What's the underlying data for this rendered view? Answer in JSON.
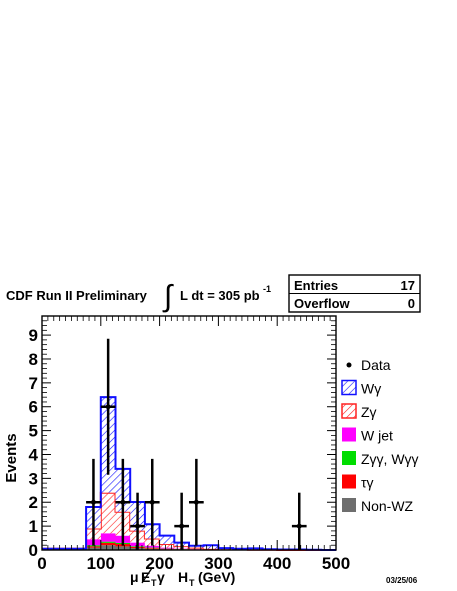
{
  "chart_data": {
    "type": "bar",
    "title_parts": {
      "pre": "CDF Run II Preliminary",
      "integral": "∫",
      "lumi": "L dt = 305 pb",
      "exp": "-1"
    },
    "stats_box": {
      "entries_label": "Entries",
      "entries_value": "17",
      "overflow_label": "Overflow",
      "overflow_value": "0"
    },
    "xlabel": "μE̸Tγ  HT (GeV)",
    "xlabel_parts": {
      "prefix": "μ",
      "met": "E",
      "met_sub": "T",
      "gamma": "γ",
      "ht": "H",
      "ht_sub": "T",
      "unit": "(GeV)"
    },
    "ylabel": "Events",
    "xlim": [
      0,
      500
    ],
    "ylim": [
      0,
      9.8
    ],
    "x_ticks": [
      "0",
      "100",
      "200",
      "300",
      "400",
      "500"
    ],
    "y_ticks": [
      "0",
      "1",
      "2",
      "3",
      "4",
      "5",
      "6",
      "7",
      "8",
      "9"
    ],
    "date": "03/25/06",
    "bin_width": 25,
    "bin_edges_start": 0,
    "stack": [
      {
        "name": "Non-WZ",
        "color": "#6e6e6e",
        "values": [
          0.05,
          0.05,
          0.05,
          0.1,
          0.2,
          0.15,
          0.08,
          0.05,
          0.03,
          0.02,
          0.02,
          0.01,
          0,
          0,
          0,
          0,
          0,
          0,
          0,
          0
        ]
      },
      {
        "name": "τγ",
        "color": "#ff0000",
        "values": [
          0,
          0,
          0,
          0.05,
          0.1,
          0.1,
          0.05,
          0.03,
          0.02,
          0.01,
          0.01,
          0,
          0,
          0,
          0,
          0,
          0,
          0,
          0,
          0
        ]
      },
      {
        "name": "Zγγ, Wγγ",
        "color": "#00dd00",
        "values": [
          0,
          0,
          0,
          0.05,
          0.05,
          0.05,
          0.03,
          0.02,
          0.01,
          0.01,
          0,
          0,
          0,
          0,
          0,
          0,
          0,
          0,
          0,
          0
        ]
      },
      {
        "name": "W jet",
        "color": "#ff00ff",
        "values": [
          0,
          0,
          0,
          0.25,
          0.35,
          0.3,
          0.15,
          0.08,
          0.04,
          0.02,
          0.01,
          0,
          0,
          0,
          0,
          0,
          0,
          0,
          0,
          0
        ]
      },
      {
        "name": "Zγ",
        "color": "#ff2222",
        "values": [
          0,
          0,
          0,
          0.45,
          1.7,
          1.0,
          0.5,
          0.3,
          0.15,
          0.1,
          0.06,
          0.04,
          0.03,
          0.02,
          0.01,
          0.01,
          0,
          0,
          0,
          0
        ]
      },
      {
        "name": "Wγ",
        "color": "#1010ff",
        "values": [
          0,
          0,
          0,
          0.9,
          4.0,
          1.8,
          1.2,
          0.6,
          0.35,
          0.15,
          0.08,
          0.15,
          0.05,
          0.03,
          0.06,
          0.02,
          0.02,
          0.02,
          0.01,
          0
        ]
      }
    ],
    "data_points": [
      {
        "x": 87.5,
        "y": 2
      },
      {
        "x": 112.5,
        "y": 6
      },
      {
        "x": 137.5,
        "y": 2
      },
      {
        "x": 162.5,
        "y": 1
      },
      {
        "x": 187.5,
        "y": 2
      },
      {
        "x": 237.5,
        "y": 1
      },
      {
        "x": 262.5,
        "y": 2
      },
      {
        "x": 437.5,
        "y": 1
      }
    ],
    "legend": [
      {
        "label": "Data",
        "style": "marker"
      },
      {
        "label": "Wγ",
        "style": "hatch-blue"
      },
      {
        "label": "Zγ",
        "style": "hatch-red"
      },
      {
        "label": "W jet",
        "style": "fill",
        "color": "#ff00ff"
      },
      {
        "label": "Zγγ, Wγγ",
        "style": "fill",
        "color": "#00dd00"
      },
      {
        "label": "τγ",
        "style": "fill",
        "color": "#ff0000"
      },
      {
        "label": "Non-WZ",
        "style": "fill",
        "color": "#6e6e6e"
      }
    ],
    "legend_placement": "right",
    "grid": false
  }
}
